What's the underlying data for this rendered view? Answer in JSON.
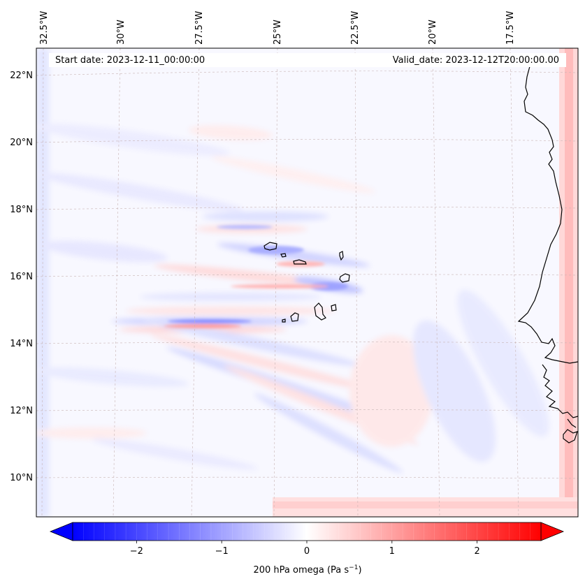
{
  "map": {
    "start_date": "Start date: 2023-12-11_00:00:00",
    "valid_date": "Valid_date: 2023-12-12T20:00:00.00",
    "lon_labels": [
      "32.5°W",
      "30°W",
      "27.5°W",
      "25°W",
      "22.5°W",
      "20°W",
      "17.5°W"
    ],
    "lat_labels": [
      "22°N",
      "20°N",
      "18°N",
      "16°N",
      "14°N",
      "12°N",
      "10°N"
    ],
    "coastline_color": "#000000",
    "gridline_color": "#c8b4b4"
  },
  "colorbar": {
    "title": "200 hPa omega (Pa s",
    "unit_superscript": "−1",
    "title_close": ")",
    "tick_labels": [
      "−2",
      "−1",
      "0",
      "1",
      "2"
    ],
    "range": [
      -2.75,
      2.75
    ],
    "ticks": [
      -2,
      -1,
      0,
      1,
      2
    ],
    "min_color": "#0000ff",
    "mid_color": "#ffffff",
    "max_color": "#ff0000",
    "extend": "both"
  }
}
